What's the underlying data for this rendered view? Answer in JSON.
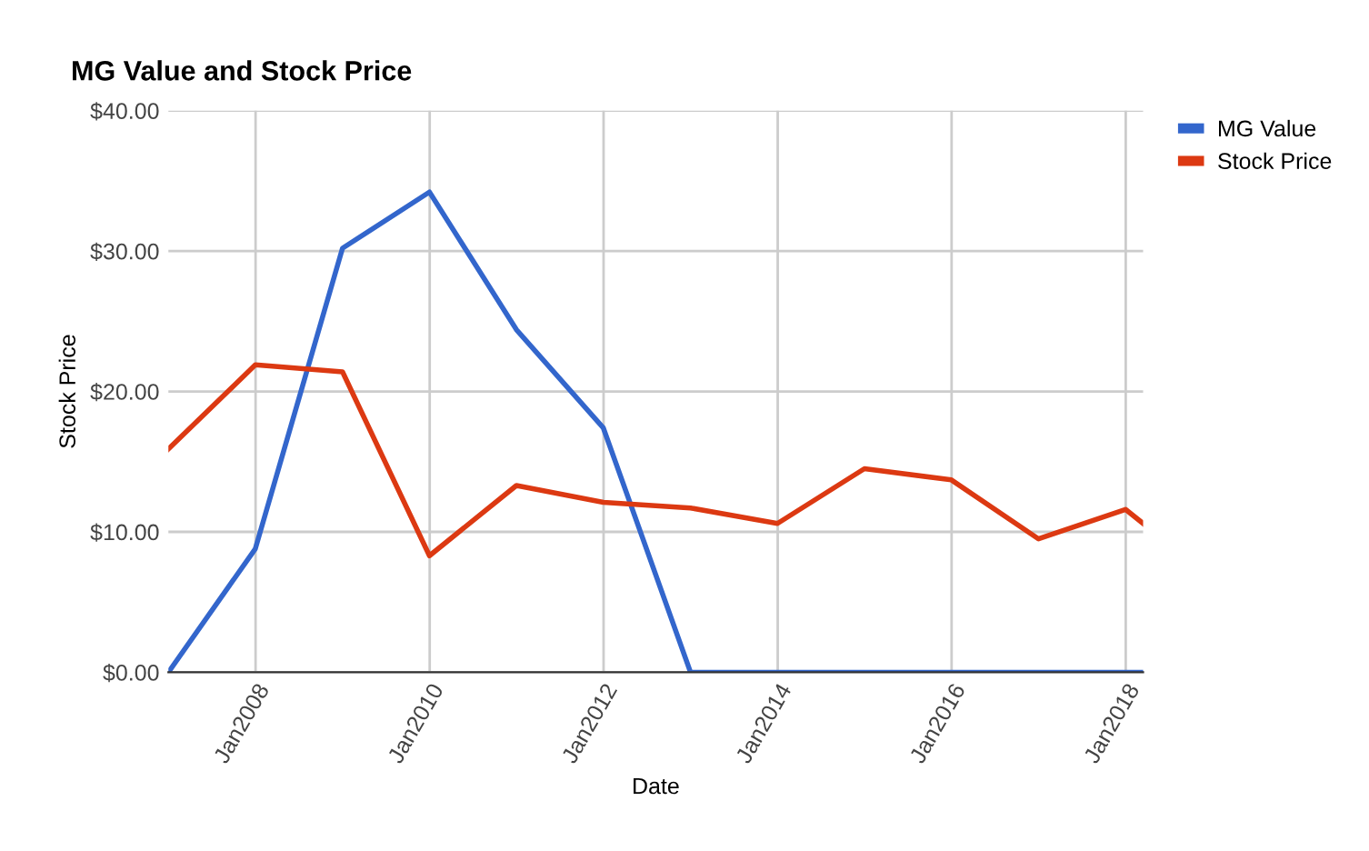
{
  "chart_data": {
    "type": "line",
    "title": "MG Value and Stock Price",
    "xlabel": "Date",
    "ylabel": "Stock Price",
    "x": [
      "2006-12-31",
      "2007-12-31",
      "2008-12-31",
      "2009-12-31",
      "2010-12-31",
      "2011-12-31",
      "2012-12-31",
      "2013-12-31",
      "2014-12-31",
      "2015-12-31",
      "2016-12-31",
      "2017-12-31",
      "2018-03-15"
    ],
    "series": [
      {
        "name": "MG Value",
        "color": "#3366cc",
        "values": [
          0,
          8.8,
          30.2,
          34.2,
          24.4,
          17.4,
          0,
          0,
          0,
          0,
          0,
          0,
          0
        ]
      },
      {
        "name": "Stock Price",
        "color": "#dc3912",
        "values": [
          15.9,
          21.9,
          21.4,
          8.3,
          13.3,
          12.1,
          11.7,
          10.6,
          14.5,
          13.7,
          9.5,
          11.6,
          10.6
        ]
      }
    ],
    "xlim": [
      "2006-12-31",
      "2018-03-15"
    ],
    "xticks": [
      {
        "value": "2008-01-01",
        "label": "Jan2008"
      },
      {
        "value": "2010-01-01",
        "label": "Jan2010"
      },
      {
        "value": "2012-01-01",
        "label": "Jan2012"
      },
      {
        "value": "2014-01-01",
        "label": "Jan2014"
      },
      {
        "value": "2016-01-01",
        "label": "Jan2016"
      },
      {
        "value": "2018-01-01",
        "label": "Jan2018"
      }
    ],
    "ylim": [
      0,
      40
    ],
    "yticks": [
      {
        "value": 0,
        "label": "$0.00"
      },
      {
        "value": 10,
        "label": "$10.00"
      },
      {
        "value": 20,
        "label": "$20.00"
      },
      {
        "value": 30,
        "label": "$30.00"
      },
      {
        "value": 40,
        "label": "$40.00"
      }
    ],
    "grid": true,
    "legend": "top right",
    "marker": "none",
    "line_style": "solid"
  }
}
